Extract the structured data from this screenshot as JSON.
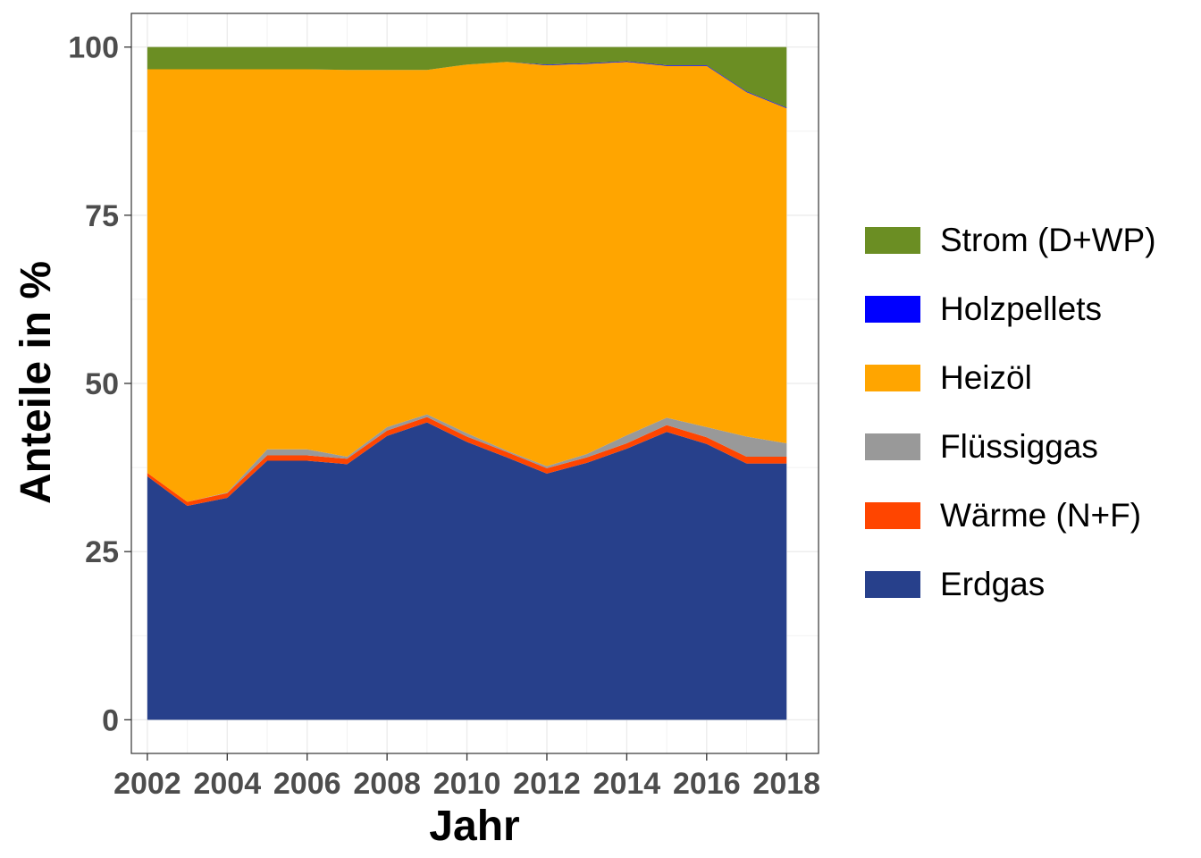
{
  "chart_data": {
    "type": "area",
    "stacked": true,
    "xlabel": "Jahr",
    "ylabel": "Anteile in %",
    "xlim": [
      2001.6,
      2018.8
    ],
    "ylim": [
      -5,
      105
    ],
    "x_ticks": [
      2002,
      2004,
      2006,
      2008,
      2010,
      2012,
      2014,
      2016,
      2018
    ],
    "y_ticks": [
      0,
      25,
      50,
      75,
      100
    ],
    "grid": true,
    "legend_position": "right",
    "x": [
      2002,
      2003,
      2004,
      2005,
      2006,
      2007,
      2008,
      2009,
      2010,
      2011,
      2012,
      2013,
      2014,
      2015,
      2016,
      2017,
      2018
    ],
    "series": [
      {
        "name": "Erdgas",
        "color": "#27408B",
        "values": [
          36.2,
          31.8,
          33.0,
          38.5,
          38.5,
          38.0,
          42.2,
          44.2,
          41.3,
          39.0,
          36.6,
          38.2,
          40.3,
          42.8,
          41.0,
          38.1,
          38.1
        ]
      },
      {
        "name": "Wärme (N+F)",
        "color": "#FF4500",
        "values": [
          0.5,
          0.6,
          0.7,
          0.8,
          0.8,
          0.8,
          0.8,
          0.8,
          0.8,
          0.8,
          0.8,
          0.8,
          0.8,
          1.0,
          1.0,
          1.0,
          1.0
        ]
      },
      {
        "name": "Flüssiggas",
        "color": "#999999",
        "values": [
          0.0,
          0.0,
          0.1,
          0.9,
          0.9,
          0.3,
          0.5,
          0.4,
          0.5,
          0.2,
          0.3,
          0.5,
          1.2,
          1.1,
          1.5,
          3.0,
          2.0
        ]
      },
      {
        "name": "Heizöl",
        "color": "#FFA500",
        "values": [
          60.0,
          64.3,
          62.9,
          56.5,
          56.5,
          57.5,
          53.1,
          51.2,
          54.8,
          57.8,
          59.6,
          58.0,
          55.5,
          52.3,
          53.7,
          51.2,
          49.8
        ]
      },
      {
        "name": "Holzpellets",
        "color": "#0000FF",
        "values": [
          0.0,
          0.0,
          0.0,
          0.0,
          0.0,
          0.0,
          0.0,
          0.0,
          0.0,
          0.0,
          0.1,
          0.1,
          0.1,
          0.1,
          0.1,
          0.1,
          0.1
        ]
      },
      {
        "name": "Strom (D+WP)",
        "color": "#6B8E23",
        "values": [
          3.3,
          3.3,
          3.3,
          3.3,
          3.3,
          3.4,
          3.4,
          3.4,
          2.6,
          2.2,
          2.6,
          2.4,
          2.1,
          2.7,
          2.7,
          6.6,
          9.0
        ]
      }
    ],
    "legend_order": [
      "Strom (D+WP)",
      "Holzpellets",
      "Heizöl",
      "Flüssiggas",
      "Wärme (N+F)",
      "Erdgas"
    ]
  }
}
